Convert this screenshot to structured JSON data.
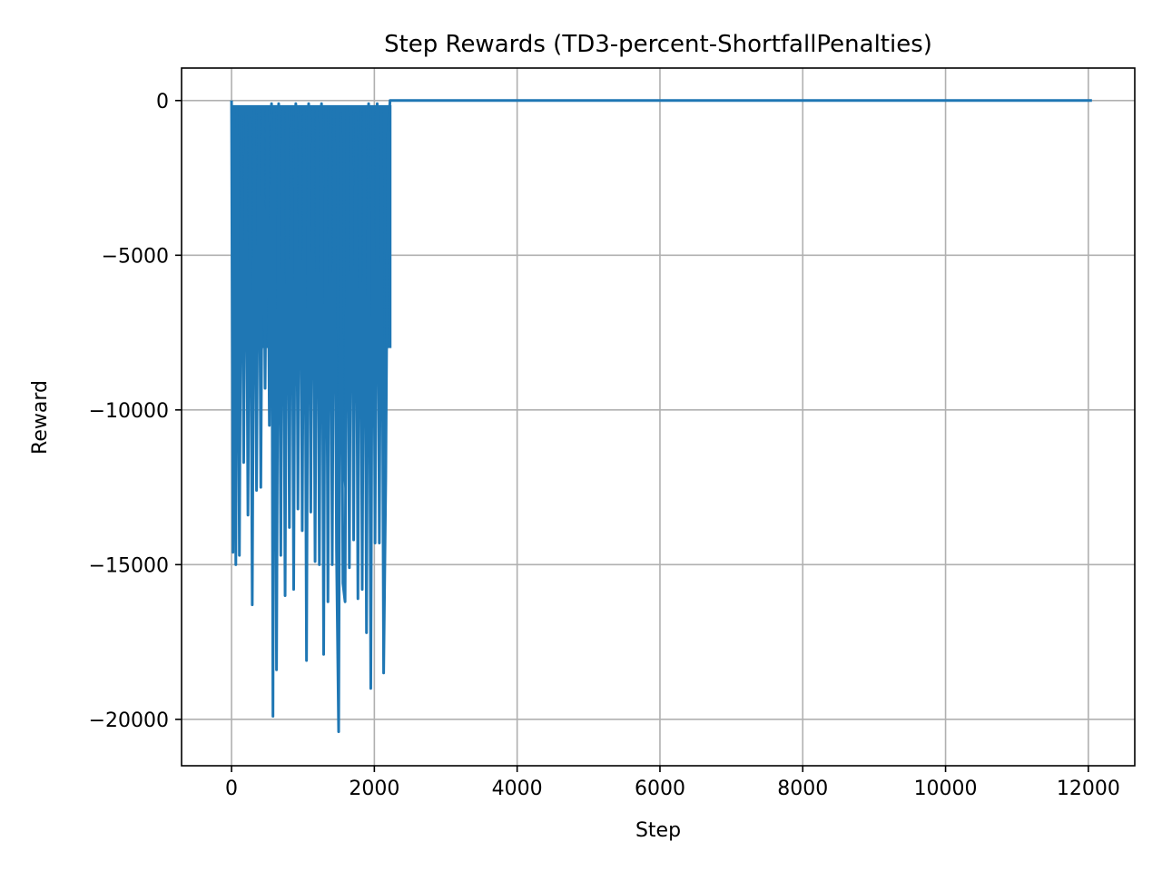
{
  "chart_data": {
    "type": "line",
    "title": "Step Rewards (TD3-percent-ShortfallPenalties)",
    "xlabel": "Step",
    "ylabel": "Reward",
    "xlim": [
      -700,
      12650
    ],
    "ylim": [
      -21500,
      1050
    ],
    "x_ticks": [
      0,
      2000,
      4000,
      6000,
      8000,
      10000,
      12000
    ],
    "y_ticks": [
      0,
      -5000,
      -10000,
      -15000,
      -20000
    ],
    "x_tick_labels": [
      "0",
      "2000",
      "4000",
      "6000",
      "8000",
      "10000",
      "12000"
    ],
    "y_tick_labels": [
      "0",
      "−5000",
      "−10000",
      "−15000",
      "−20000"
    ],
    "grid": true,
    "legend": "none",
    "series": [
      {
        "color": "#1f77b4",
        "x": [
          0,
          20,
          40,
          60,
          80,
          110,
          140,
          170,
          200,
          230,
          260,
          290,
          320,
          350,
          380,
          410,
          440,
          470,
          500,
          530,
          560,
          580,
          600,
          630,
          660,
          690,
          720,
          750,
          780,
          810,
          840,
          870,
          900,
          930,
          960,
          990,
          1020,
          1050,
          1080,
          1110,
          1140,
          1170,
          1200,
          1230,
          1260,
          1290,
          1320,
          1350,
          1380,
          1410,
          1440,
          1470,
          1500,
          1530,
          1560,
          1590,
          1620,
          1650,
          1680,
          1710,
          1740,
          1770,
          1800,
          1830,
          1860,
          1890,
          1920,
          1950,
          1980,
          2010,
          2040,
          2070,
          2100,
          2130,
          2160,
          2190,
          2220,
          2240,
          2300,
          2500,
          4000,
          6000,
          8000,
          10000,
          12050
        ],
        "values": [
          0,
          -14600,
          -300,
          -15000,
          -200,
          -14700,
          -500,
          -11700,
          -400,
          -13400,
          -600,
          -16300,
          -300,
          -12600,
          -200,
          -12500,
          -300,
          -9300,
          -200,
          -10500,
          -100,
          -19900,
          -200,
          -18400,
          -100,
          -14700,
          -300,
          -16000,
          -200,
          -13800,
          -300,
          -15800,
          -100,
          -13200,
          -200,
          -13900,
          -300,
          -18100,
          -100,
          -13300,
          -200,
          -14900,
          -300,
          -15000,
          -100,
          -17900,
          -200,
          -16200,
          -300,
          -15000,
          -200,
          -14500,
          -20400,
          -400,
          -15600,
          -16200,
          -200,
          -15100,
          -300,
          -14200,
          -400,
          -16100,
          -300,
          -15800,
          -200,
          -17200,
          -100,
          -19000,
          -300,
          -14300,
          -100,
          -14300,
          -200,
          -18500,
          -12200,
          -1100,
          0,
          0,
          0,
          0,
          0,
          0,
          0,
          0,
          0
        ]
      }
    ]
  }
}
